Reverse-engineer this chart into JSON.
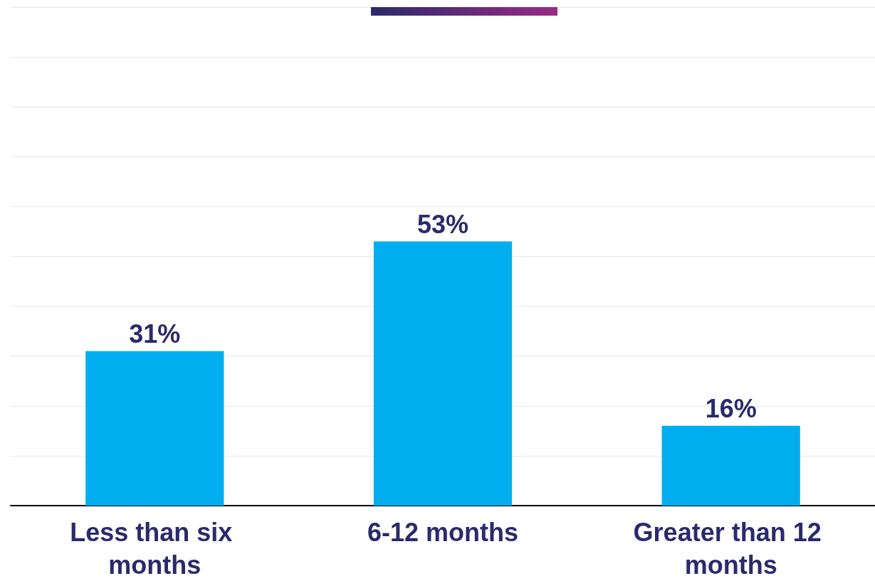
{
  "chart_data": {
    "type": "bar",
    "categories": [
      "Less than six months",
      "6-12 months",
      "Greater than 12 months"
    ],
    "values": [
      31,
      53,
      16
    ],
    "color": "#00aeef",
    "data_labels": true,
    "value_labels": [
      "31%",
      "53%",
      "16%"
    ],
    "ylim": [
      0,
      100
    ],
    "yticks": [
      {
        "value": 0,
        "label": null
      },
      {
        "value": 10,
        "label": null
      },
      {
        "value": 20,
        "label": null
      },
      {
        "value": 30,
        "label": null
      },
      {
        "value": 40,
        "label": null
      },
      {
        "value": 50,
        "label": null
      },
      {
        "value": 60,
        "label": null
      },
      {
        "value": 70,
        "label": null
      },
      {
        "value": 80,
        "label": null
      },
      {
        "value": 90,
        "label": null
      },
      {
        "value": 100,
        "label": null
      }
    ],
    "grid": "y",
    "tick_labels": "x"
  }
}
